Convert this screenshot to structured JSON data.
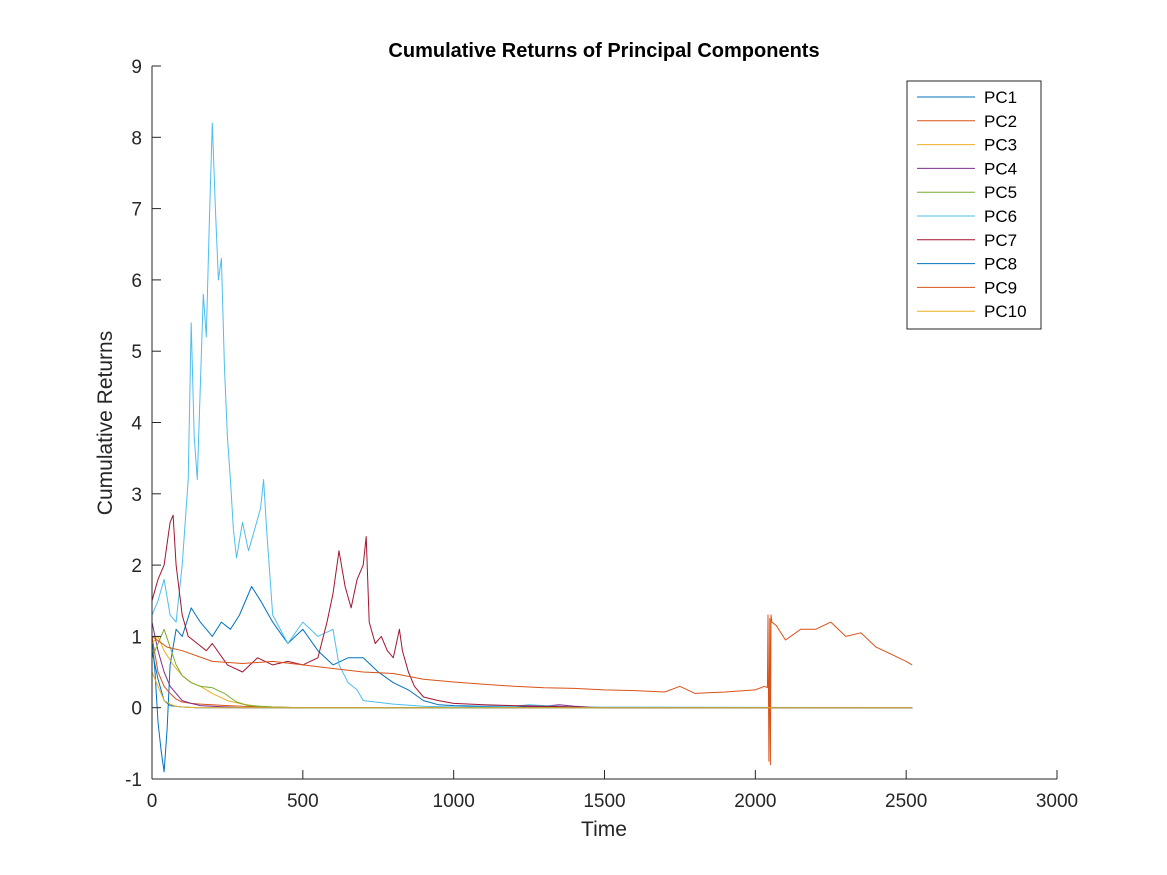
{
  "chart_data": {
    "type": "line",
    "title": "Cumulative Returns of Principal Components",
    "xlabel": "Time",
    "ylabel": "Cumulative Returns",
    "xlim": [
      0,
      3000
    ],
    "ylim": [
      -1,
      9
    ],
    "xticks": [
      0,
      500,
      1000,
      1500,
      2000,
      2500,
      3000
    ],
    "yticks": [
      -1,
      0,
      1,
      2,
      3,
      4,
      5,
      6,
      7,
      8,
      9
    ],
    "grid": false,
    "legend_position": "top-right",
    "series": [
      {
        "name": "PC1",
        "color": "#0072BD",
        "x": [
          0,
          10,
          20,
          30,
          40,
          50,
          60,
          80,
          100,
          130,
          160,
          200,
          230,
          260,
          290,
          330,
          360,
          400,
          450,
          500,
          550,
          600,
          650,
          700,
          750,
          800,
          850,
          900,
          950,
          1000,
          1100,
          1200,
          1300,
          1400,
          1500,
          2520
        ],
        "y": [
          1.0,
          0.5,
          -0.2,
          -0.6,
          -0.9,
          -0.3,
          0.6,
          1.1,
          1.0,
          1.4,
          1.2,
          1.0,
          1.2,
          1.1,
          1.3,
          1.7,
          1.5,
          1.2,
          0.9,
          1.1,
          0.8,
          0.6,
          0.7,
          0.7,
          0.5,
          0.35,
          0.25,
          0.1,
          0.04,
          0.03,
          0.02,
          0.02,
          0.01,
          0.01,
          0.0,
          0.0
        ]
      },
      {
        "name": "PC2",
        "color": "#D95319",
        "x": [
          0,
          20,
          40,
          60,
          80,
          100,
          130,
          160,
          200,
          250,
          300,
          400,
          500,
          2520
        ],
        "y": [
          1.0,
          0.5,
          0.3,
          0.2,
          0.12,
          0.08,
          0.06,
          0.05,
          0.04,
          0.03,
          0.02,
          0.01,
          0.0,
          0.0
        ]
      },
      {
        "name": "PC3",
        "color": "#EDB120",
        "x": [
          0,
          20,
          40,
          70,
          100,
          130,
          160,
          200,
          250,
          300,
          350,
          400,
          450,
          500,
          600,
          700,
          2520
        ],
        "y": [
          0.9,
          1.0,
          0.8,
          0.6,
          0.45,
          0.35,
          0.3,
          0.2,
          0.1,
          0.05,
          0.02,
          0.01,
          0.0,
          0.0,
          0.0,
          0.0,
          0.0
        ]
      },
      {
        "name": "PC4",
        "color": "#7E2F8E",
        "x": [
          0,
          20,
          40,
          60,
          80,
          100,
          130,
          160,
          200,
          250,
          300,
          400,
          500,
          1200,
          1300,
          1350,
          1400,
          1500,
          2520
        ],
        "y": [
          1.2,
          0.8,
          0.5,
          0.3,
          0.2,
          0.1,
          0.06,
          0.03,
          0.02,
          0.01,
          0.0,
          0.0,
          0.0,
          0.0,
          0.02,
          0.04,
          0.02,
          0.0,
          0.0
        ]
      },
      {
        "name": "PC5",
        "color": "#77AC30",
        "x": [
          0,
          20,
          40,
          60,
          80,
          100,
          130,
          160,
          200,
          240,
          280,
          320,
          400,
          500,
          2520
        ],
        "y": [
          0.7,
          0.9,
          1.1,
          0.85,
          0.6,
          0.45,
          0.35,
          0.3,
          0.28,
          0.2,
          0.08,
          0.03,
          0.01,
          0.0,
          0.0
        ]
      },
      {
        "name": "PC6",
        "color": "#4DBEEE",
        "x": [
          0,
          20,
          40,
          60,
          80,
          100,
          120,
          130,
          140,
          150,
          160,
          170,
          180,
          190,
          200,
          210,
          220,
          230,
          240,
          250,
          260,
          270,
          280,
          300,
          320,
          340,
          360,
          370,
          380,
          400,
          450,
          500,
          550,
          600,
          620,
          650,
          680,
          700,
          800,
          900,
          1000,
          1100,
          1200,
          1250,
          1300,
          1400,
          2520
        ],
        "y": [
          1.3,
          1.5,
          1.8,
          1.3,
          1.2,
          2.0,
          3.2,
          5.4,
          3.8,
          3.2,
          4.5,
          5.8,
          5.2,
          6.8,
          8.2,
          7.0,
          6.0,
          6.3,
          4.8,
          3.8,
          3.2,
          2.5,
          2.1,
          2.6,
          2.2,
          2.5,
          2.8,
          3.2,
          2.5,
          1.3,
          0.9,
          1.2,
          1.0,
          1.1,
          0.6,
          0.35,
          0.25,
          0.1,
          0.05,
          0.02,
          0.01,
          0.01,
          0.02,
          0.04,
          0.03,
          0.01,
          0.0
        ]
      },
      {
        "name": "PC7",
        "color": "#A2142F",
        "x": [
          0,
          20,
          40,
          60,
          70,
          80,
          100,
          120,
          150,
          180,
          200,
          250,
          300,
          350,
          400,
          450,
          500,
          550,
          580,
          600,
          620,
          640,
          660,
          680,
          700,
          710,
          720,
          740,
          760,
          780,
          800,
          820,
          830,
          850,
          870,
          900,
          950,
          1000,
          1100,
          1200,
          1300,
          1400,
          1500,
          2520
        ],
        "y": [
          1.5,
          1.8,
          2.0,
          2.6,
          2.7,
          2.0,
          1.3,
          1.0,
          0.9,
          0.8,
          0.9,
          0.6,
          0.5,
          0.7,
          0.6,
          0.65,
          0.6,
          0.7,
          1.2,
          1.6,
          2.2,
          1.7,
          1.4,
          1.8,
          2.0,
          2.4,
          1.2,
          0.9,
          1.0,
          0.8,
          0.7,
          1.1,
          0.8,
          0.5,
          0.3,
          0.15,
          0.1,
          0.06,
          0.04,
          0.03,
          0.02,
          0.01,
          0.0,
          0.0
        ]
      },
      {
        "name": "PC8",
        "color": "#0072BD",
        "x": [
          0,
          20,
          40,
          60,
          100,
          150,
          200,
          300,
          400,
          2520
        ],
        "y": [
          0.8,
          0.4,
          0.1,
          0.03,
          0.01,
          0.0,
          0.0,
          0.0,
          0.0,
          0.0
        ]
      },
      {
        "name": "PC9",
        "color": "#D95319",
        "x": [
          0,
          50,
          100,
          200,
          300,
          400,
          500,
          600,
          700,
          800,
          900,
          1000,
          1100,
          1200,
          1300,
          1400,
          1500,
          1600,
          1700,
          1750,
          1800,
          1900,
          2000,
          2030,
          2040,
          2042,
          2045,
          2048,
          2050,
          2052,
          2055,
          2070,
          2100,
          2150,
          2200,
          2250,
          2300,
          2350,
          2400,
          2450,
          2500,
          2520
        ],
        "y": [
          1.0,
          0.85,
          0.8,
          0.65,
          0.62,
          0.65,
          0.6,
          0.55,
          0.5,
          0.48,
          0.4,
          0.36,
          0.33,
          0.3,
          0.28,
          0.27,
          0.25,
          0.24,
          0.22,
          0.3,
          0.2,
          0.22,
          0.25,
          0.3,
          0.28,
          1.3,
          -0.75,
          1.25,
          -0.8,
          1.3,
          1.2,
          1.15,
          0.95,
          1.1,
          1.1,
          1.2,
          1.0,
          1.05,
          0.85,
          0.75,
          0.65,
          0.6
        ]
      },
      {
        "name": "PC10",
        "color": "#EDB120",
        "x": [
          0,
          20,
          40,
          60,
          80,
          100,
          150,
          200,
          300,
          2520
        ],
        "y": [
          0.5,
          0.3,
          0.1,
          0.05,
          0.02,
          0.01,
          0.0,
          0.0,
          0.0,
          0.0
        ]
      }
    ]
  }
}
